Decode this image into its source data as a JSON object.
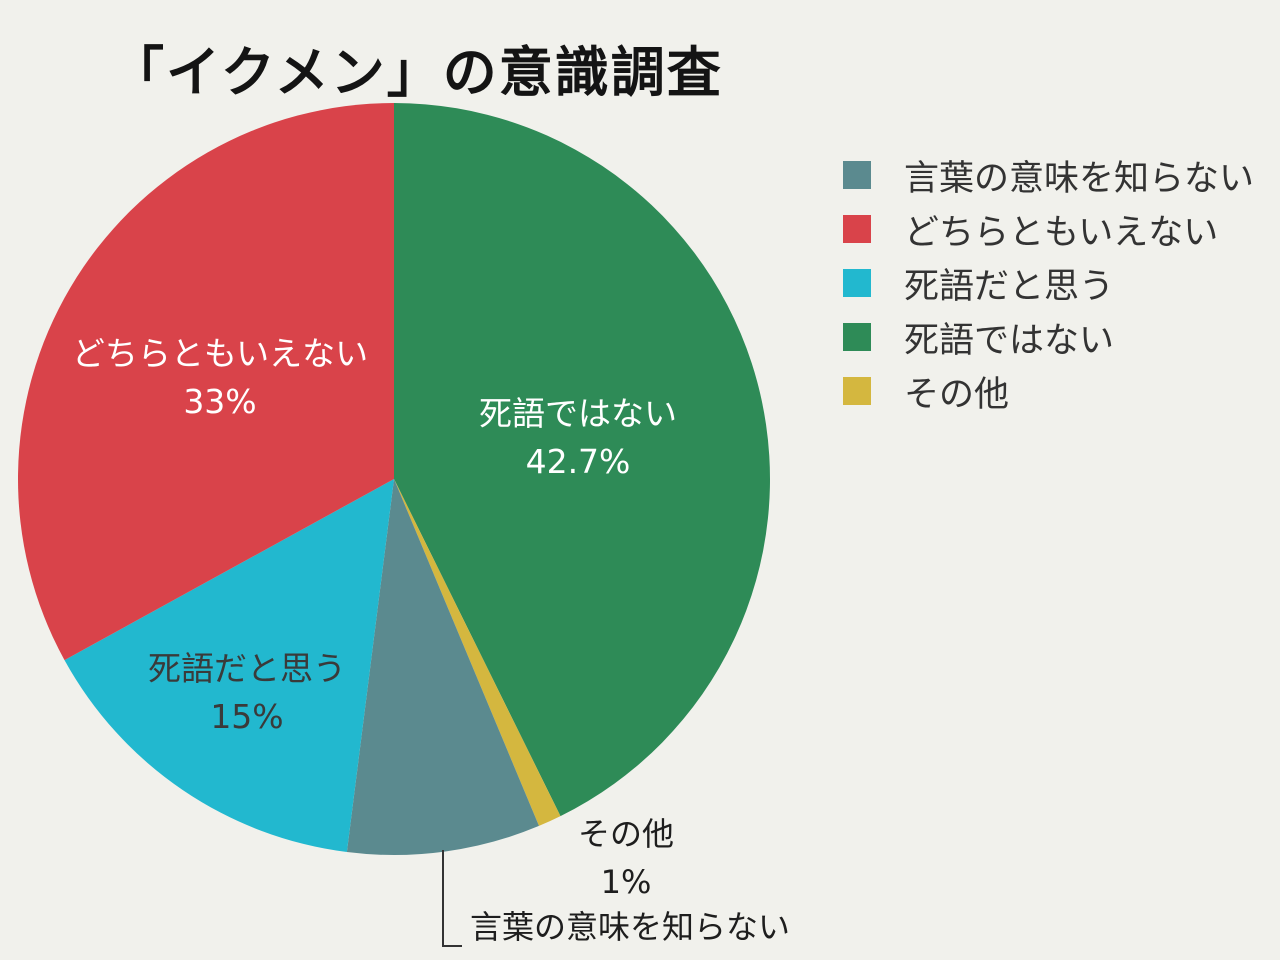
{
  "chart_data": {
    "type": "pie",
    "title": "「イクメン」の意識調査",
    "start_angle_deg": 0,
    "direction": "clockwise",
    "slices": [
      {
        "label": "死語ではない",
        "value": 42.7,
        "value_label": "42.7%",
        "color": "#2e8b57",
        "label_color": "#ffffff"
      },
      {
        "label": "その他",
        "value": 1,
        "value_label": "1%",
        "color": "#d4b73f",
        "label_color": "#1e1e1e"
      },
      {
        "label": "言葉の意味を知らない",
        "value": 8.3,
        "value_label": "",
        "color": "#5b8a8f",
        "label_color": "#1e1e1e"
      },
      {
        "label": "死語だと思う",
        "value": 15,
        "value_label": "15%",
        "color": "#22b8cf",
        "label_color": "#3a3a3a"
      },
      {
        "label": "どちらともいえない",
        "value": 33,
        "value_label": "33%",
        "color": "#d9434a",
        "label_color": "#ffffff"
      }
    ],
    "legend": {
      "position": "right",
      "order": [
        "言葉の意味を知らない",
        "どちらともいえない",
        "死語だと思う",
        "死語ではない",
        "その他"
      ]
    }
  }
}
